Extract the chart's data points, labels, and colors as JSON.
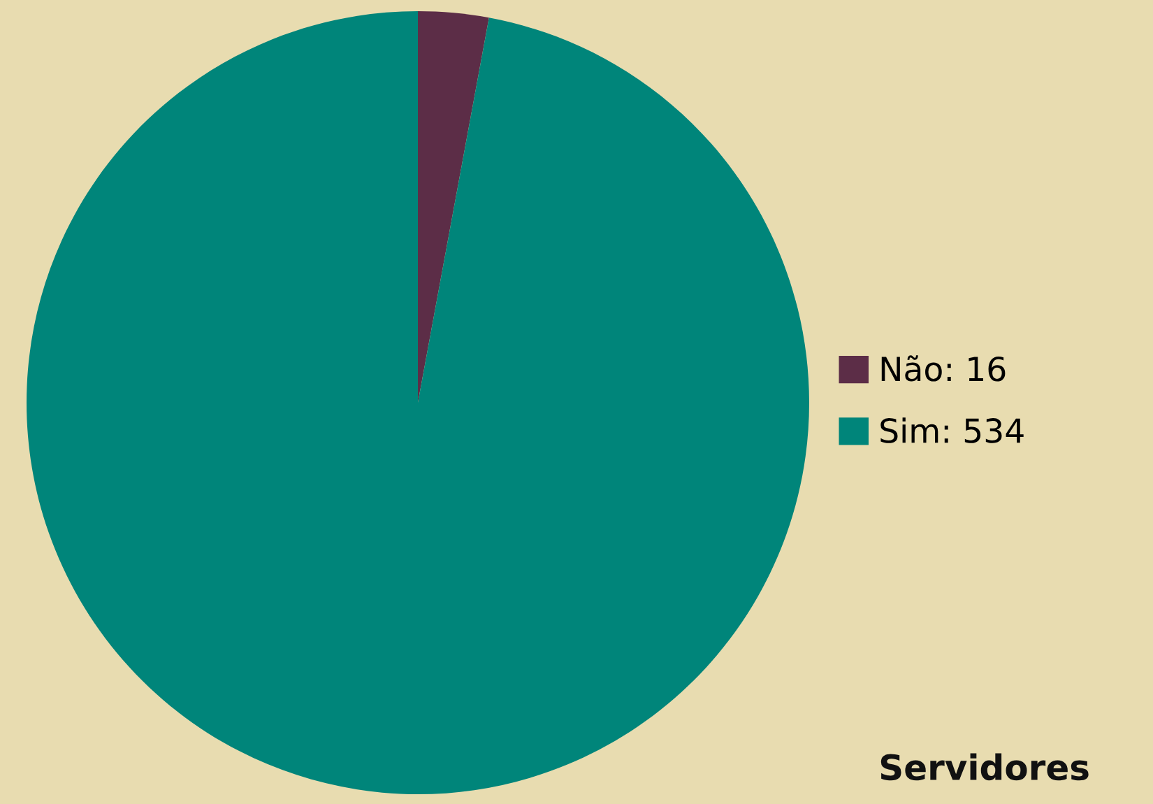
{
  "chart_data": {
    "type": "pie",
    "title": "Servidores",
    "categories": [
      "Não: 16",
      "Sim: 534"
    ],
    "values": [
      16,
      534
    ],
    "colors": [
      "#5c2d47",
      "#00857a"
    ],
    "legend": "right"
  }
}
